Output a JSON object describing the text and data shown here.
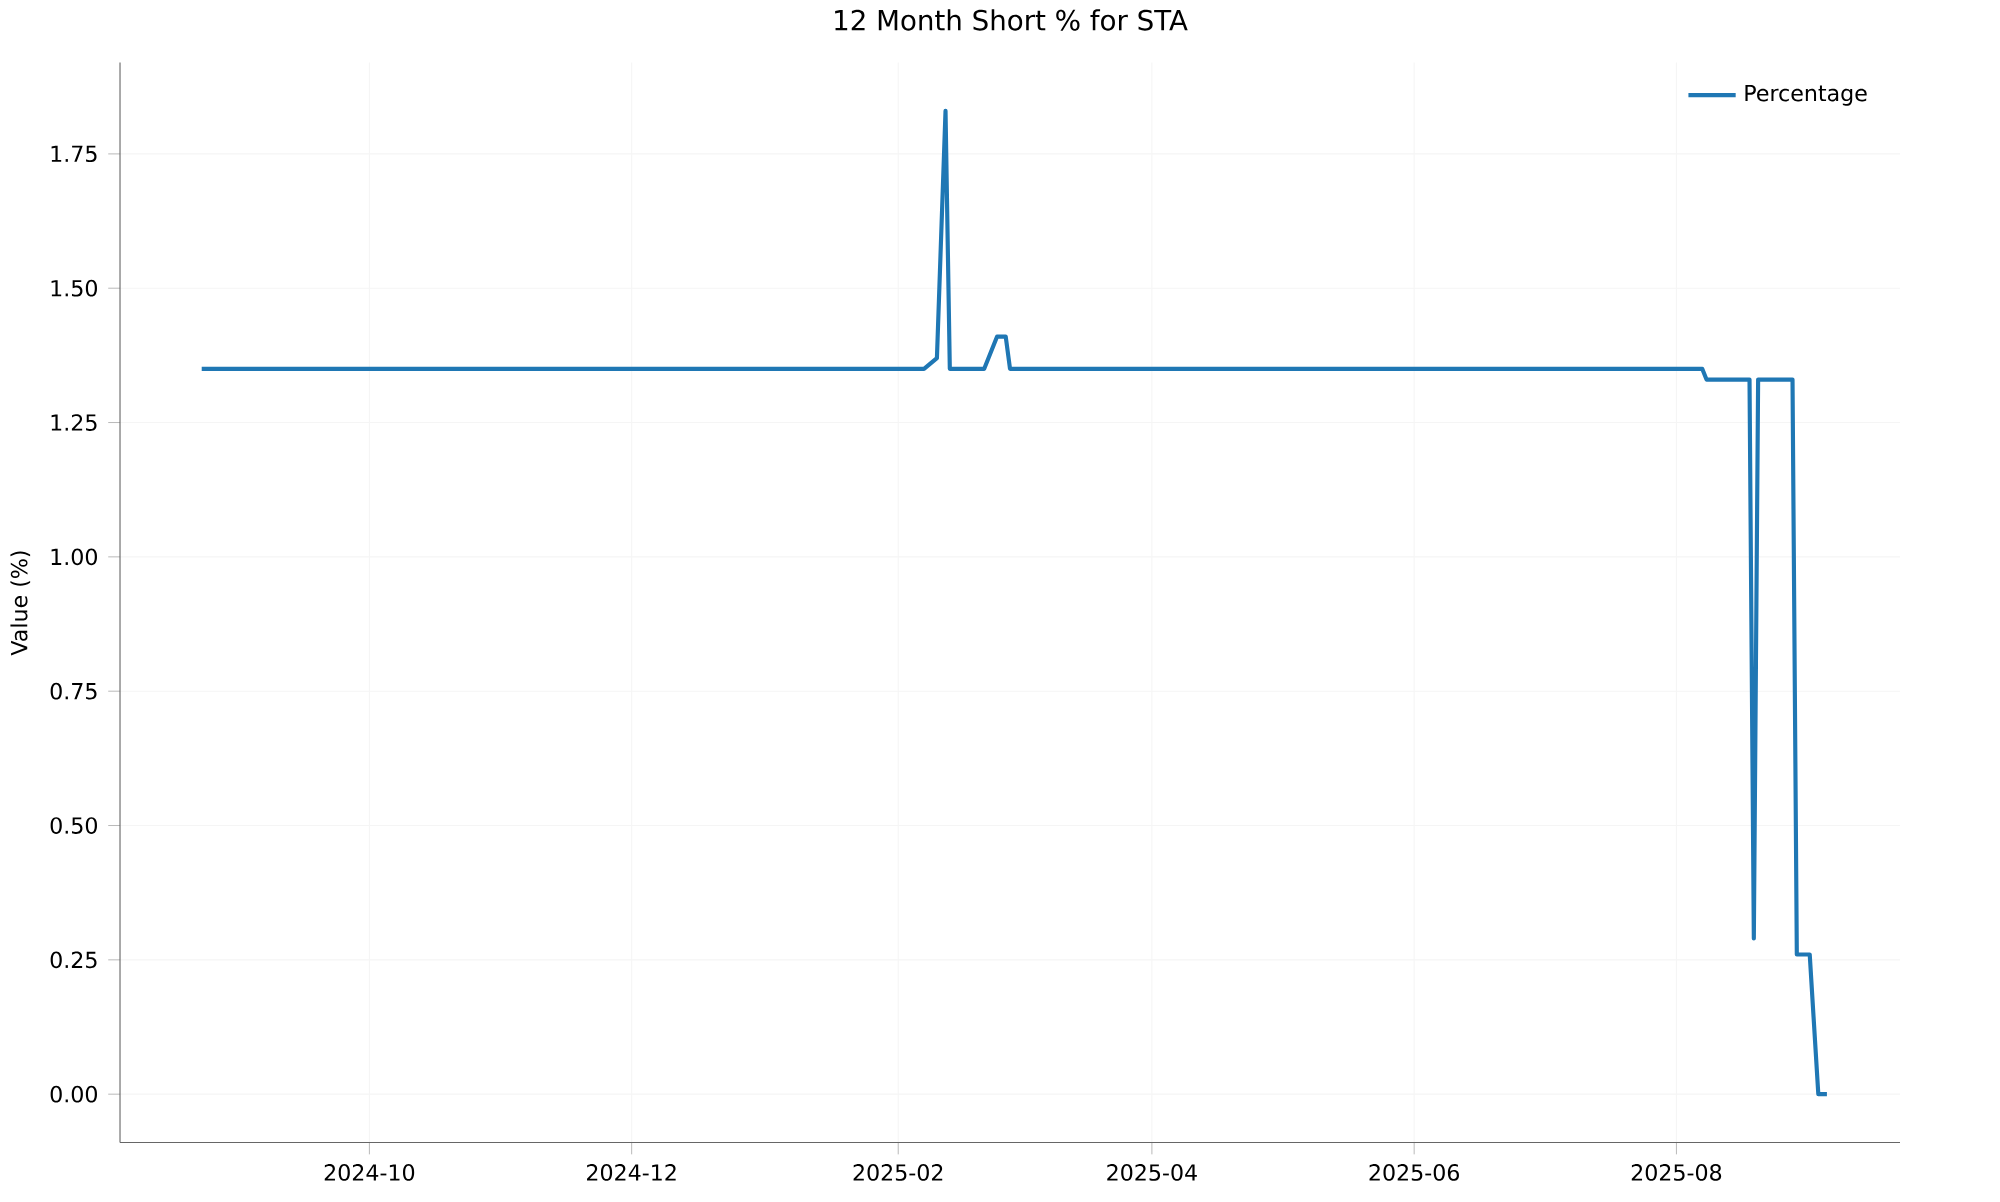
{
  "chart_data": {
    "type": "line",
    "title": "12 Month Short % for STA",
    "ylabel": "Value (%)",
    "x": [
      "2024-08-23",
      "2025-02-07",
      "2025-02-10",
      "2025-02-12",
      "2025-02-13",
      "2025-02-21",
      "2025-02-24",
      "2025-02-26",
      "2025-02-27",
      "2025-08-07",
      "2025-08-08",
      "2025-08-18",
      "2025-08-19",
      "2025-08-20",
      "2025-08-28",
      "2025-08-29",
      "2025-09-01",
      "2025-09-03",
      "2025-09-05"
    ],
    "series": [
      {
        "name": "Percentage",
        "color": "#1f77b4",
        "values": [
          1.35,
          1.35,
          1.37,
          1.83,
          1.35,
          1.35,
          1.41,
          1.41,
          1.35,
          1.35,
          1.33,
          1.33,
          0.29,
          1.33,
          1.33,
          0.26,
          0.26,
          0.0,
          0.0
        ]
      }
    ],
    "xlim": [
      "2024-08-04",
      "2025-09-22"
    ],
    "ylim": [
      -0.09,
      1.92
    ],
    "xticks": [
      {
        "value": "2024-10-01",
        "label": "2024-10"
      },
      {
        "value": "2024-12-01",
        "label": "2024-12"
      },
      {
        "value": "2025-02-01",
        "label": "2025-02"
      },
      {
        "value": "2025-04-01",
        "label": "2025-04"
      },
      {
        "value": "2025-06-01",
        "label": "2025-06"
      },
      {
        "value": "2025-08-01",
        "label": "2025-08"
      }
    ],
    "yticks": [
      {
        "value": 0,
        "label": "0.00"
      },
      {
        "value": 0.25,
        "label": "0.25"
      },
      {
        "value": 0.5,
        "label": "0.50"
      },
      {
        "value": 0.75,
        "label": "0.75"
      },
      {
        "value": 1.0,
        "label": "1.00"
      },
      {
        "value": 1.25,
        "label": "1.25"
      },
      {
        "value": 1.5,
        "label": "1.50"
      },
      {
        "value": 1.75,
        "label": "1.75"
      }
    ],
    "grid": true,
    "legend": "top right"
  }
}
